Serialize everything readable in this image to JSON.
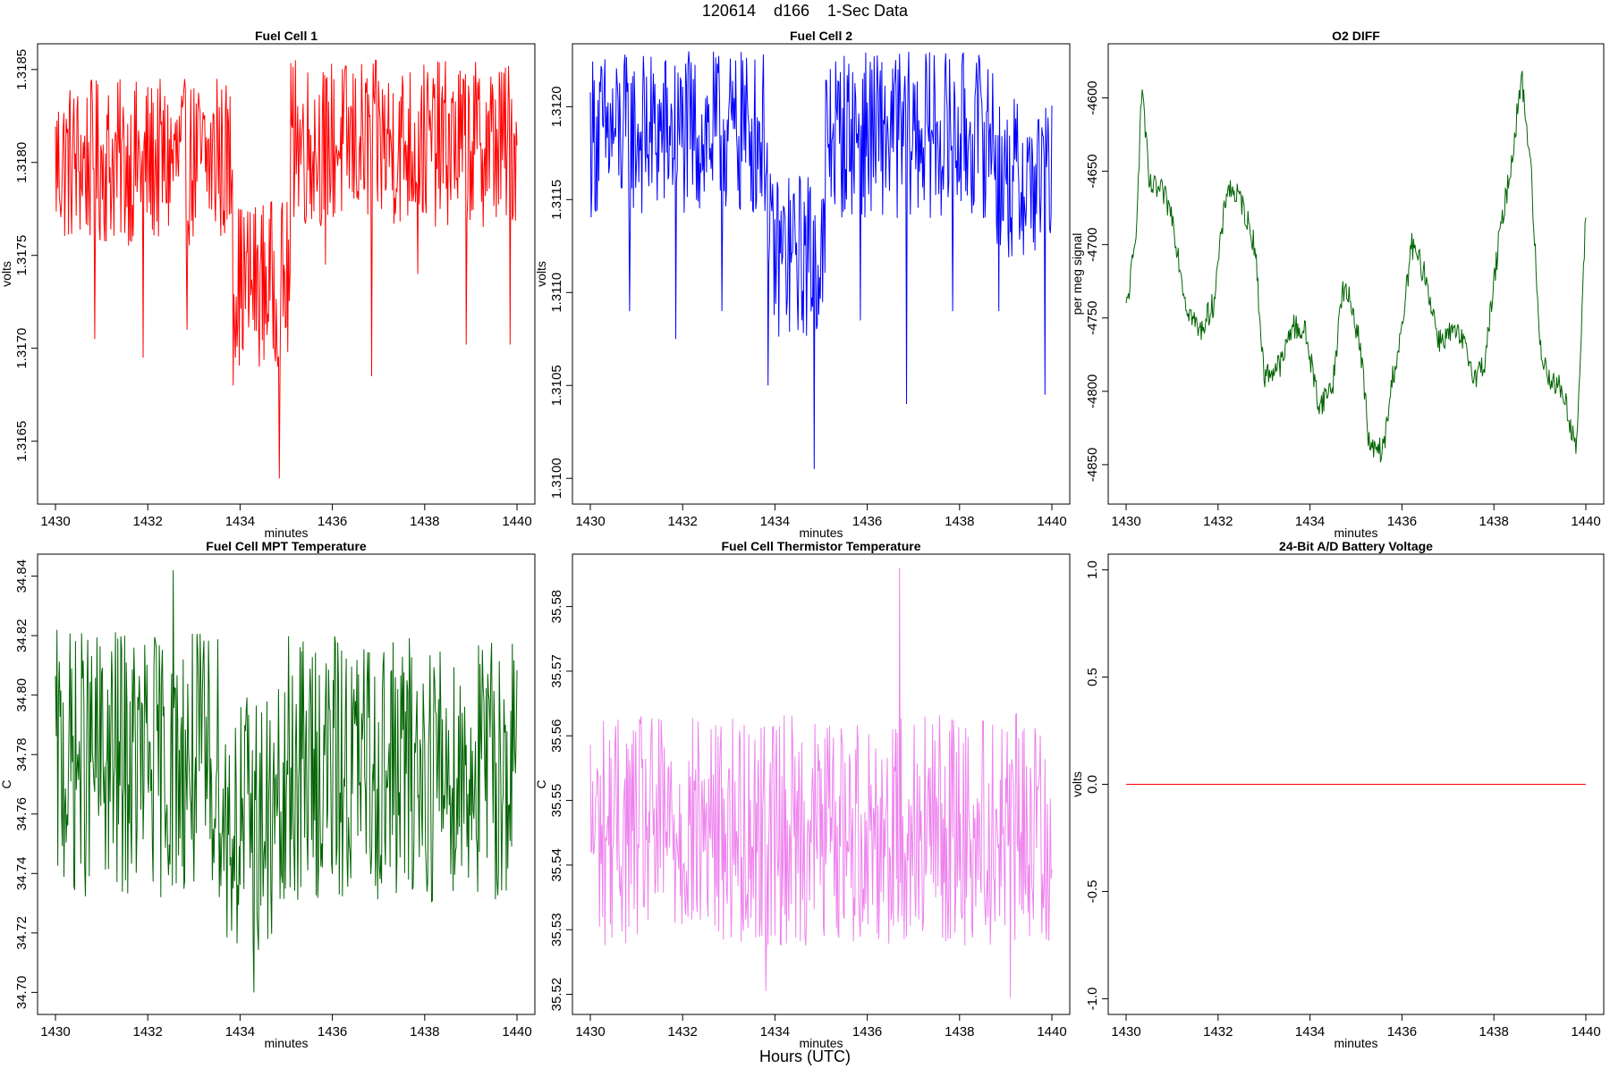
{
  "page": {
    "title": "120614    d166    1-Sec Data",
    "xlabel_outer": "Hours (UTC)"
  },
  "chart_data": [
    {
      "type": "line",
      "title": "Fuel Cell 1",
      "xlabel": "minutes",
      "ylabel": "volts",
      "color": "#ff0000",
      "xlim": [
        1430,
        1440
      ],
      "ylim": [
        1.3162,
        1.3186
      ],
      "xticks": [
        1430,
        1432,
        1434,
        1436,
        1438,
        1440
      ],
      "yticks": [
        1.3165,
        1.317,
        1.3175,
        1.318,
        1.3185
      ],
      "ytick_decimals": 4,
      "series": [
        {
          "name": "Fuel Cell 1",
          "segments": [
            [
              1430.0,
              1433.85,
              1.318
            ],
            [
              1433.85,
              1435.1,
              1.31735
            ],
            [
              1435.1,
              1440.0,
              1.3181
            ]
          ],
          "noise": 0.00045,
          "spikes": [
            [
              1430.85,
              1.31705
            ],
            [
              1431.9,
              1.31695
            ],
            [
              1432.85,
              1.3171
            ],
            [
              1433.85,
              1.3168
            ],
            [
              1434.85,
              1.3163
            ],
            [
              1435.85,
              1.31745
            ],
            [
              1436.85,
              1.31685
            ],
            [
              1437.85,
              1.3174
            ],
            [
              1438.9,
              1.31702
            ],
            [
              1439.85,
              1.31702
            ]
          ],
          "peaks": [
            [
              1433.5,
              1.31845
            ],
            [
              1435.2,
              1.31855
            ]
          ]
        }
      ]
    },
    {
      "type": "line",
      "title": "Fuel Cell 2",
      "xlabel": "minutes",
      "ylabel": "volts",
      "color": "#0000ff",
      "xlim": [
        1430,
        1440
      ],
      "ylim": [
        1.3099,
        1.3123
      ],
      "xticks": [
        1430,
        1432,
        1434,
        1436,
        1438,
        1440
      ],
      "yticks": [
        1.31,
        1.3105,
        1.311,
        1.3115,
        1.312
      ],
      "ytick_decimals": 4,
      "series": [
        {
          "name": "Fuel Cell 2",
          "segments": [
            [
              1430.0,
              1433.85,
              1.31185
            ],
            [
              1433.85,
              1435.1,
              1.3112
            ],
            [
              1435.1,
              1438.8,
              1.31185
            ],
            [
              1438.8,
              1440.0,
              1.3116
            ]
          ],
          "noise": 0.00045,
          "spikes": [
            [
              1430.85,
              1.3109
            ],
            [
              1431.85,
              1.31075
            ],
            [
              1432.85,
              1.3109
            ],
            [
              1433.85,
              1.3105
            ],
            [
              1434.85,
              1.31005
            ],
            [
              1435.85,
              1.31085
            ],
            [
              1436.85,
              1.3104
            ],
            [
              1437.85,
              1.3109
            ],
            [
              1438.85,
              1.3109
            ],
            [
              1439.85,
              1.31045
            ]
          ],
          "peaks": [
            [
              1433.3,
              1.31225
            ],
            [
              1436.1,
              1.3122
            ]
          ]
        }
      ]
    },
    {
      "type": "line",
      "title": "O2 DIFF",
      "xlabel": "minutes",
      "ylabel": "per meg signal",
      "color": "#006400",
      "xlim": [
        1430,
        1440
      ],
      "ylim": [
        -4872,
        -4568
      ],
      "xticks": [
        1430,
        1432,
        1434,
        1436,
        1438,
        1440
      ],
      "yticks": [
        -4850,
        -4800,
        -4750,
        -4700,
        -4650,
        -4600
      ],
      "ytick_decimals": 0,
      "series": [
        {
          "name": "O2 DIFF",
          "points": [
            [
              1430.0,
              -4745
            ],
            [
              1430.2,
              -4700
            ],
            [
              1430.35,
              -4590
            ],
            [
              1430.5,
              -4660
            ],
            [
              1430.8,
              -4665
            ],
            [
              1431.0,
              -4680
            ],
            [
              1431.3,
              -4740
            ],
            [
              1431.6,
              -4760
            ],
            [
              1431.9,
              -4740
            ],
            [
              1432.2,
              -4660
            ],
            [
              1432.5,
              -4670
            ],
            [
              1432.8,
              -4700
            ],
            [
              1433.0,
              -4790
            ],
            [
              1433.4,
              -4780
            ],
            [
              1433.6,
              -4755
            ],
            [
              1433.9,
              -4760
            ],
            [
              1434.2,
              -4810
            ],
            [
              1434.5,
              -4795
            ],
            [
              1434.7,
              -4730
            ],
            [
              1434.9,
              -4740
            ],
            [
              1435.1,
              -4770
            ],
            [
              1435.3,
              -4840
            ],
            [
              1435.6,
              -4840
            ],
            [
              1435.8,
              -4790
            ],
            [
              1436.0,
              -4760
            ],
            [
              1436.2,
              -4700
            ],
            [
              1436.5,
              -4720
            ],
            [
              1436.8,
              -4765
            ],
            [
              1437.1,
              -4760
            ],
            [
              1437.3,
              -4765
            ],
            [
              1437.6,
              -4790
            ],
            [
              1437.8,
              -4780
            ],
            [
              1438.1,
              -4700
            ],
            [
              1438.4,
              -4640
            ],
            [
              1438.6,
              -4585
            ],
            [
              1438.8,
              -4645
            ],
            [
              1439.0,
              -4770
            ],
            [
              1439.2,
              -4790
            ],
            [
              1439.5,
              -4800
            ],
            [
              1439.8,
              -4840
            ],
            [
              1440.0,
              -4680
            ]
          ],
          "noise": 9
        }
      ]
    },
    {
      "type": "line",
      "title": "Fuel Cell MPT Temperature",
      "xlabel": "minutes",
      "ylabel": "C",
      "color": "#006400",
      "xlim": [
        1430,
        1440
      ],
      "ylim": [
        34.695,
        34.845
      ],
      "xticks": [
        1430,
        1432,
        1434,
        1436,
        1438,
        1440
      ],
      "yticks": [
        34.7,
        34.72,
        34.74,
        34.76,
        34.78,
        34.8,
        34.82,
        34.84
      ],
      "ytick_decimals": 2,
      "series": [
        {
          "name": "Fuel Cell MPT Temperature",
          "segments": [
            [
              1430.0,
              1433.6,
              34.777
            ],
            [
              1433.6,
              1435.0,
              34.757
            ],
            [
              1435.0,
              1440.0,
              34.775
            ]
          ],
          "noise": 0.045,
          "spikes": [
            [
              1434.3,
              34.7
            ],
            [
              1432.55,
              34.842
            ],
            [
              1434.6,
              34.718
            ]
          ],
          "peaks": [
            [
              1432.55,
              34.842
            ]
          ]
        }
      ]
    },
    {
      "type": "line",
      "title": "Fuel Cell Thermistor Temperature",
      "xlabel": "minutes",
      "ylabel": "C",
      "color": "#ee82ee",
      "xlim": [
        1430,
        1440
      ],
      "ylim": [
        35.518,
        35.587
      ],
      "xticks": [
        1430,
        1432,
        1434,
        1436,
        1438,
        1440
      ],
      "yticks": [
        35.52,
        35.53,
        35.54,
        35.55,
        35.56,
        35.57,
        35.58
      ],
      "ytick_decimals": 2,
      "series": [
        {
          "name": "Fuel Cell Thermistor Temperature",
          "segments": [
            [
              1430.0,
              1440.0,
              35.5455
            ]
          ],
          "noise": 0.018,
          "spikes": [
            [
              1439.1,
              35.5195
            ],
            [
              1433.8,
              35.5205
            ]
          ],
          "peaks": [
            [
              1436.7,
              35.586
            ]
          ]
        }
      ]
    },
    {
      "type": "line",
      "title": "24-Bit A/D Battery Voltage",
      "xlabel": "minutes",
      "ylabel": "volts",
      "color": "#ff0000",
      "xlim": [
        1430,
        1440
      ],
      "ylim": [
        -1.04,
        1.04
      ],
      "xticks": [
        1430,
        1432,
        1434,
        1436,
        1438,
        1440
      ],
      "yticks": [
        -1.0,
        -0.5,
        0.0,
        0.5,
        1.0
      ],
      "ytick_decimals": 1,
      "series": [
        {
          "name": "24-Bit A/D Battery Voltage",
          "points": [
            [
              1430.0,
              0.0
            ],
            [
              1440.0,
              0.0
            ]
          ],
          "noise": 0
        }
      ]
    }
  ]
}
